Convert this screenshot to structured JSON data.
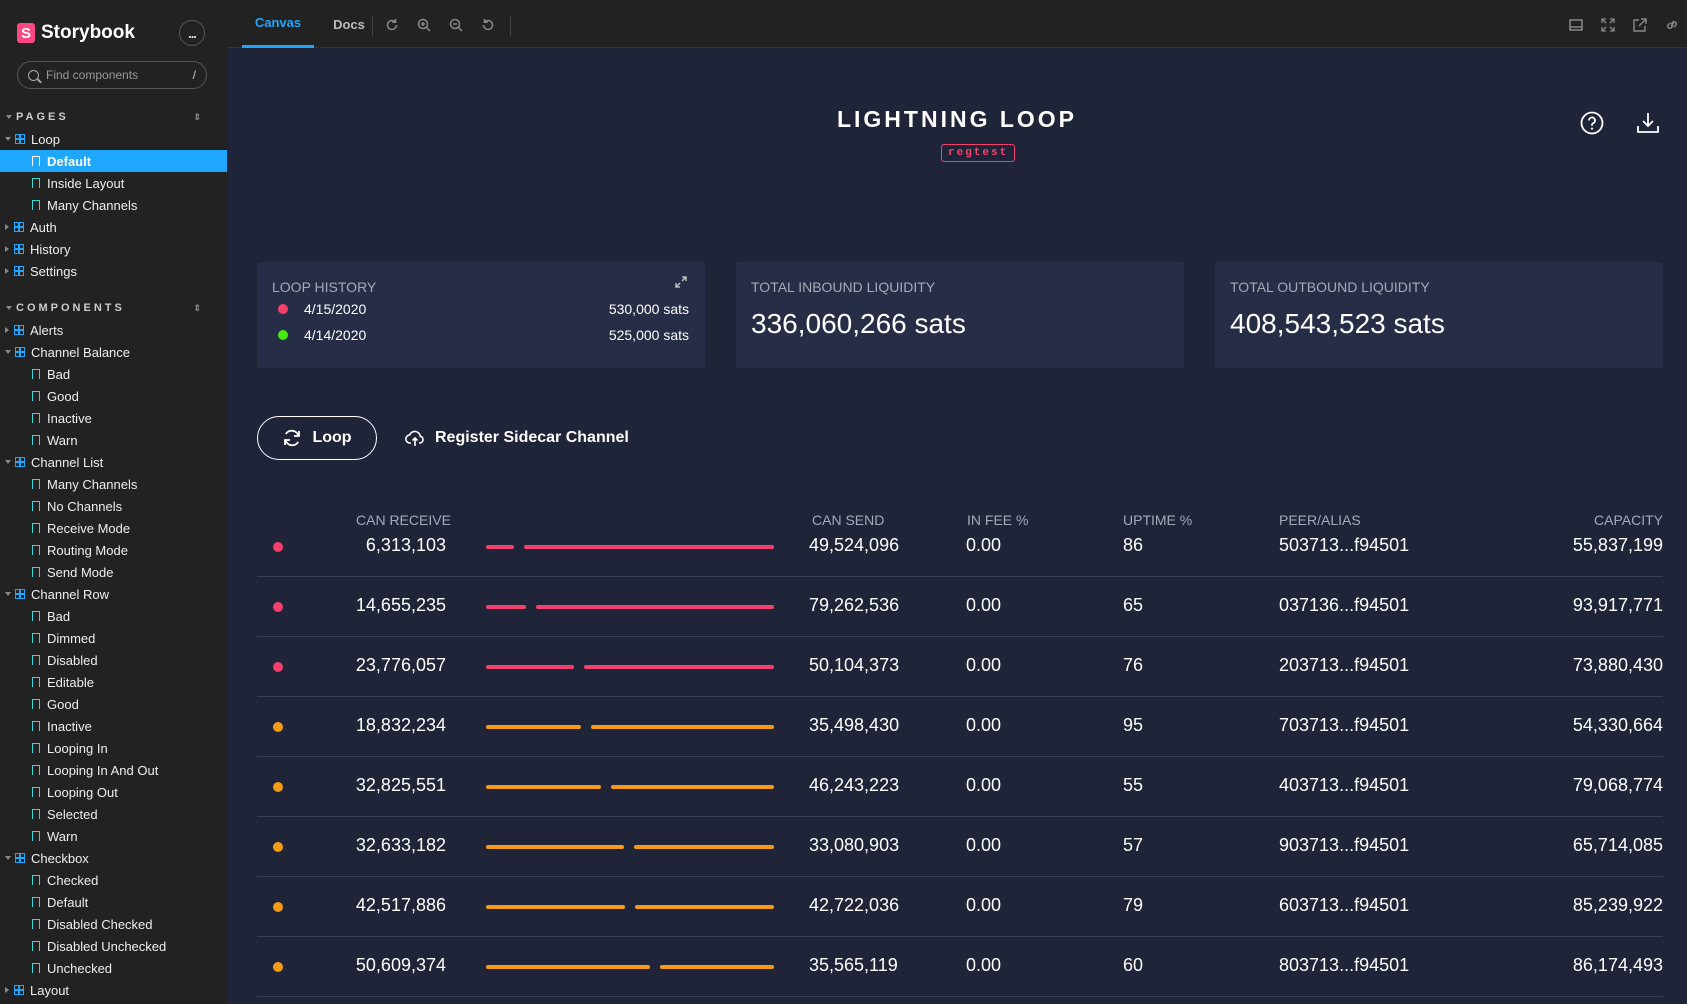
{
  "app": {
    "name": "Storybook",
    "search_placeholder": "Find components",
    "search_shortcut": "/",
    "menu_label": "..."
  },
  "sidebar": {
    "sections": [
      {
        "title": "PAGES",
        "groups": [
          {
            "label": "Loop",
            "expanded": true,
            "stories": [
              {
                "label": "Default",
                "selected": true
              },
              {
                "label": "Inside Layout"
              },
              {
                "label": "Many Channels"
              }
            ]
          },
          {
            "label": "Auth",
            "expanded": false,
            "stories": []
          },
          {
            "label": "History",
            "expanded": false,
            "stories": []
          },
          {
            "label": "Settings",
            "expanded": false,
            "stories": []
          }
        ]
      },
      {
        "title": "COMPONENTS",
        "groups": [
          {
            "label": "Alerts",
            "expanded": false,
            "stories": []
          },
          {
            "label": "Channel Balance",
            "expanded": true,
            "stories": [
              {
                "label": "Bad"
              },
              {
                "label": "Good"
              },
              {
                "label": "Inactive"
              },
              {
                "label": "Warn"
              }
            ]
          },
          {
            "label": "Channel List",
            "expanded": true,
            "stories": [
              {
                "label": "Many Channels"
              },
              {
                "label": "No Channels"
              },
              {
                "label": "Receive Mode"
              },
              {
                "label": "Routing Mode"
              },
              {
                "label": "Send Mode"
              }
            ]
          },
          {
            "label": "Channel Row",
            "expanded": true,
            "stories": [
              {
                "label": "Bad"
              },
              {
                "label": "Dimmed"
              },
              {
                "label": "Disabled"
              },
              {
                "label": "Editable"
              },
              {
                "label": "Good"
              },
              {
                "label": "Inactive"
              },
              {
                "label": "Looping In"
              },
              {
                "label": "Looping In And Out"
              },
              {
                "label": "Looping Out"
              },
              {
                "label": "Selected"
              },
              {
                "label": "Warn"
              }
            ]
          },
          {
            "label": "Checkbox",
            "expanded": true,
            "stories": [
              {
                "label": "Checked"
              },
              {
                "label": "Default"
              },
              {
                "label": "Disabled Checked"
              },
              {
                "label": "Disabled Unchecked"
              },
              {
                "label": "Unchecked"
              }
            ]
          },
          {
            "label": "Layout",
            "expanded": false,
            "stories": []
          }
        ]
      }
    ]
  },
  "toolbar": {
    "tabs": [
      "Canvas",
      "Docs"
    ],
    "active_tab": "Canvas"
  },
  "page": {
    "title": "LIGHTNING LOOP",
    "network_badge": "regtest",
    "loop_history": {
      "label": "LOOP HISTORY",
      "rows": [
        {
          "date": "4/15/2020",
          "amount": "530,000 sats",
          "status_color": "#f5406e"
        },
        {
          "date": "4/14/2020",
          "amount": "525,000 sats",
          "status_color": "#46e80e"
        }
      ]
    },
    "inbound": {
      "label": "TOTAL INBOUND LIQUIDITY",
      "value": "336,060,266 sats"
    },
    "outbound": {
      "label": "TOTAL OUTBOUND LIQUIDITY",
      "value": "408,543,523 sats"
    },
    "loop_button": "Loop",
    "sidecar_button": "Register Sidecar Channel",
    "columns": [
      "CAN RECEIVE",
      "CAN SEND",
      "IN FEE %",
      "UPTIME %",
      "PEER/ALIAS",
      "CAPACITY"
    ],
    "channels": [
      {
        "status": "bad",
        "can_receive": "6,313,103",
        "can_send": "49,524,096",
        "in_fee": "0.00",
        "uptime": "86",
        "peer": "503713...f94501",
        "capacity": "55,837,199",
        "receive_fraction": 0.113
      },
      {
        "status": "bad",
        "can_receive": "14,655,235",
        "can_send": "79,262,536",
        "in_fee": "0.00",
        "uptime": "65",
        "peer": "037136...f94501",
        "capacity": "93,917,771",
        "receive_fraction": 0.156
      },
      {
        "status": "bad",
        "can_receive": "23,776,057",
        "can_send": "50,104,373",
        "in_fee": "0.00",
        "uptime": "76",
        "peer": "203713...f94501",
        "capacity": "73,880,430",
        "receive_fraction": 0.322
      },
      {
        "status": "warn",
        "can_receive": "18,832,234",
        "can_send": "35,498,430",
        "in_fee": "0.00",
        "uptime": "95",
        "peer": "703713...f94501",
        "capacity": "54,330,664",
        "receive_fraction": 0.347
      },
      {
        "status": "warn",
        "can_receive": "32,825,551",
        "can_send": "46,243,223",
        "in_fee": "0.00",
        "uptime": "55",
        "peer": "403713...f94501",
        "capacity": "79,068,774",
        "receive_fraction": 0.415
      },
      {
        "status": "warn",
        "can_receive": "32,633,182",
        "can_send": "33,080,903",
        "in_fee": "0.00",
        "uptime": "57",
        "peer": "903713...f94501",
        "capacity": "65,714,085",
        "receive_fraction": 0.497
      },
      {
        "status": "warn",
        "can_receive": "42,517,886",
        "can_send": "42,722,036",
        "in_fee": "0.00",
        "uptime": "79",
        "peer": "603713...f94501",
        "capacity": "85,239,922",
        "receive_fraction": 0.499
      },
      {
        "status": "warn",
        "can_receive": "50,609,374",
        "can_send": "35,565,119",
        "in_fee": "0.00",
        "uptime": "60",
        "peer": "803713...f94501",
        "capacity": "86,174,493",
        "receive_fraction": 0.587
      }
    ]
  },
  "colors": {
    "accent": "#1ea7fd",
    "bad": "#f5406e",
    "warn": "#f69b14",
    "good": "#46e80e",
    "background": "#1f2439",
    "card": "#272d47",
    "sidebar": "#222222"
  },
  "icons": {
    "story": "bookmark-icon",
    "component": "component-icon",
    "reload": "reload-icon",
    "zoom_in": "zoom-in-icon",
    "zoom_out": "zoom-out-icon",
    "zoom_reset": "zoom-reset-icon",
    "help": "help-icon",
    "download": "download-icon",
    "expand": "expand-icon",
    "loop": "loop-icon",
    "sidecar": "cloud-icon"
  }
}
